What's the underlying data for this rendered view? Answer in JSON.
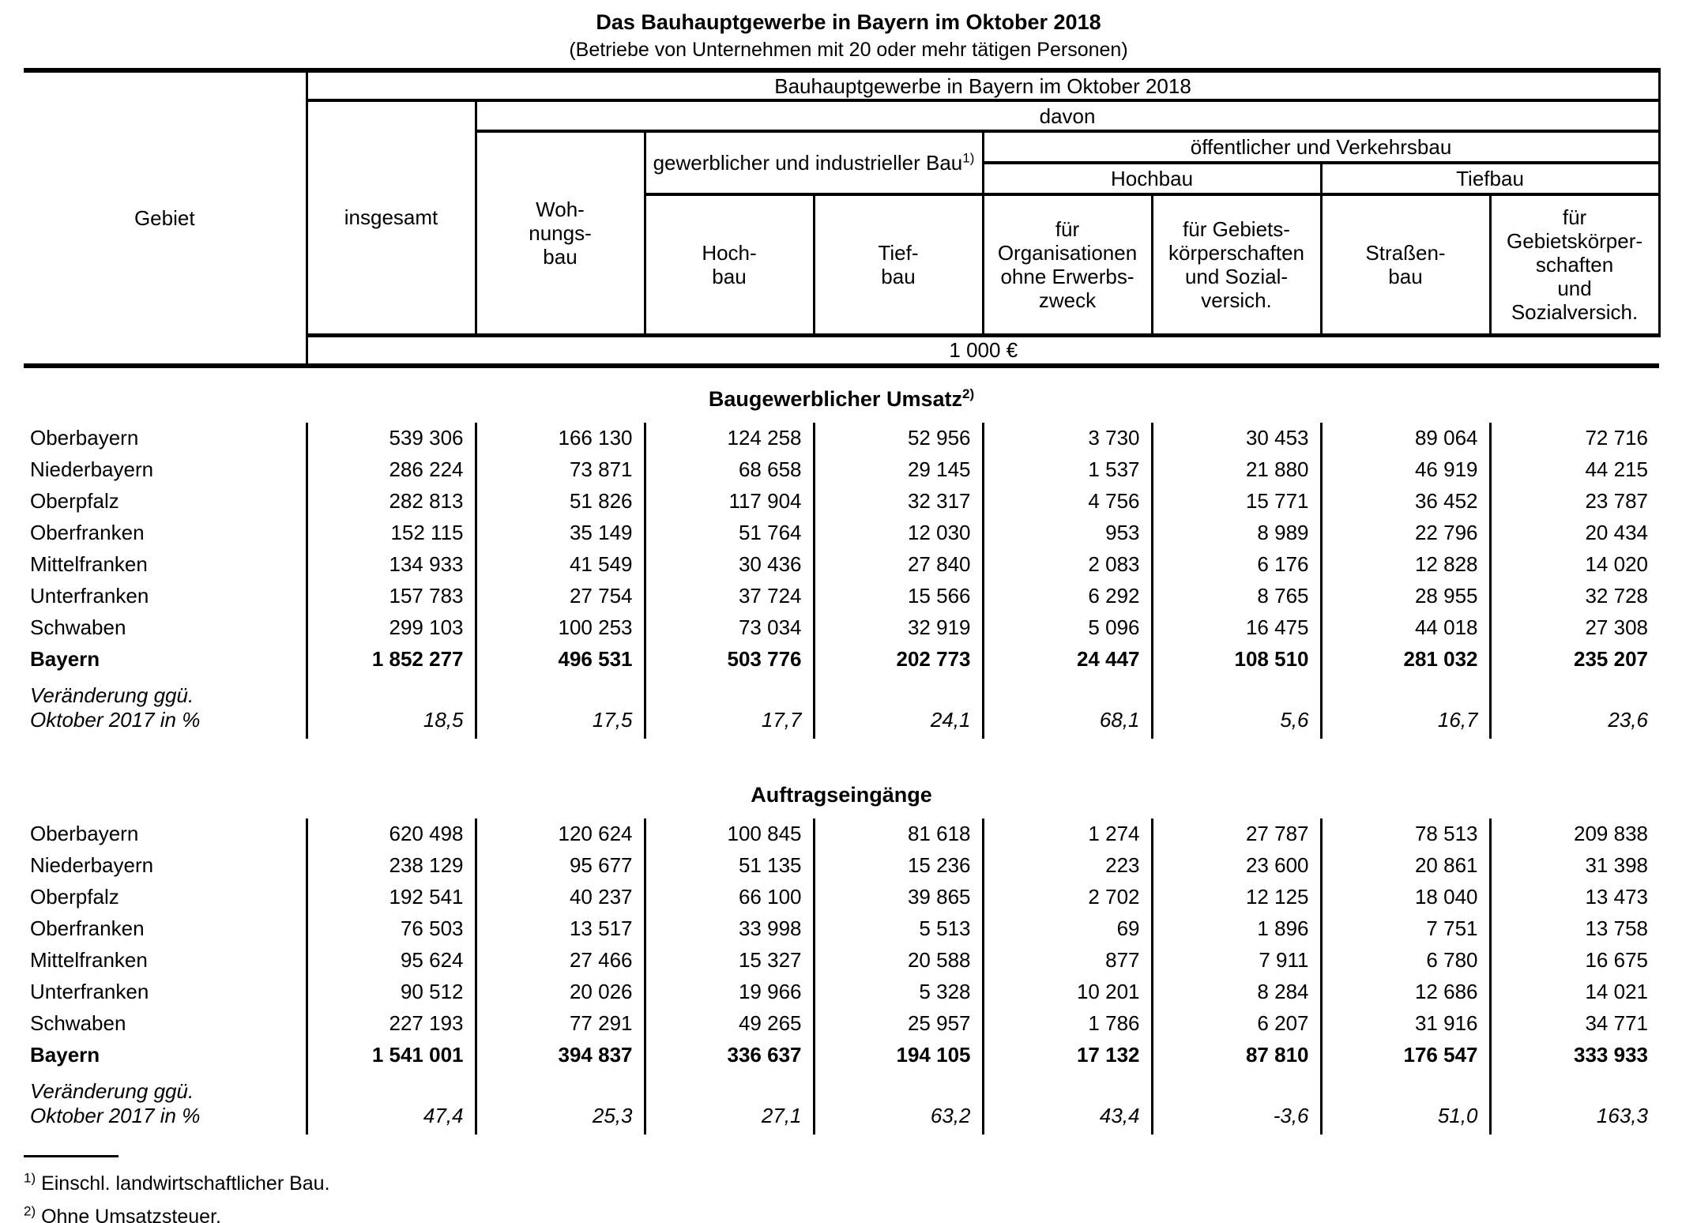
{
  "doc": {
    "title": "Das Bauhauptgewerbe in Bayern im Oktober 2018",
    "subtitle": "(Betriebe von Unternehmen mit 20 oder mehr tätigen Personen)"
  },
  "header": {
    "gebiet": "Gebiet",
    "group_top": "Bauhauptgewerbe in Bayern im Oktober 2018",
    "insgesamt": "insgesamt",
    "davon": "davon",
    "wohnungsbau": "Woh-\nnungs-\nbau",
    "gewerblich": "gewerblicher und industrieller Bau",
    "gewerblich_fn": "1)",
    "oeffentlich": "öffentlicher und Verkehrsbau",
    "hochbau_group": "Hochbau",
    "tiefbau_group": "Tiefbau",
    "hochbau": "Hoch-\nbau",
    "tiefbau": "Tief-\nbau",
    "organisationen": "für\nOrganisationen\nohne Erwerbs-\nzweck",
    "gebietskoerperschaften_hoch": "für Gebiets-\nkörperschaften\nund Sozial-\nversich.",
    "strassenbau": "Straßen-\nbau",
    "gebietskoerperschaften_tief": "für\nGebietskörper-\nschaften\nund\nSozialversich.",
    "unit": "1 000 €"
  },
  "sections": [
    {
      "title": "Baugewerblicher Umsatz",
      "title_fn": "2)",
      "rows": [
        {
          "label": "Oberbayern",
          "style": "normal",
          "values": [
            "539 306",
            "166 130",
            "124 258",
            "52 956",
            "3 730",
            "30 453",
            "89 064",
            "72 716"
          ]
        },
        {
          "label": "Niederbayern",
          "style": "normal",
          "values": [
            "286 224",
            "73 871",
            "68 658",
            "29 145",
            "1 537",
            "21 880",
            "46 919",
            "44 215"
          ]
        },
        {
          "label": "Oberpfalz",
          "style": "normal",
          "values": [
            "282 813",
            "51 826",
            "117 904",
            "32 317",
            "4 756",
            "15 771",
            "36 452",
            "23 787"
          ]
        },
        {
          "label": "Oberfranken",
          "style": "normal",
          "values": [
            "152 115",
            "35 149",
            "51 764",
            "12 030",
            "953",
            "8 989",
            "22 796",
            "20 434"
          ]
        },
        {
          "label": "Mittelfranken",
          "style": "normal",
          "values": [
            "134 933",
            "41 549",
            "30 436",
            "27 840",
            "2 083",
            "6 176",
            "12 828",
            "14 020"
          ]
        },
        {
          "label": "Unterfranken",
          "style": "normal",
          "values": [
            "157 783",
            "27 754",
            "37 724",
            "15 566",
            "6 292",
            "8 765",
            "28 955",
            "32 728"
          ]
        },
        {
          "label": "Schwaben",
          "style": "normal",
          "values": [
            "299 103",
            "100 253",
            "73 034",
            "32 919",
            "5 096",
            "16 475",
            "44 018",
            "27 308"
          ]
        },
        {
          "label": "Bayern",
          "style": "bold",
          "values": [
            "1 852 277",
            "496 531",
            "503 776",
            "202 773",
            "24 447",
            "108 510",
            "281 032",
            "235 207"
          ]
        },
        {
          "label": "Veränderung ggü.\nOktober 2017 in %",
          "style": "pct",
          "values": [
            "18,5",
            "17,5",
            "17,7",
            "24,1",
            "68,1",
            "5,6",
            "16,7",
            "23,6"
          ]
        }
      ]
    },
    {
      "title": "Auftragseingänge",
      "title_fn": "",
      "rows": [
        {
          "label": "Oberbayern",
          "style": "normal",
          "values": [
            "620 498",
            "120 624",
            "100 845",
            "81 618",
            "1 274",
            "27 787",
            "78 513",
            "209 838"
          ]
        },
        {
          "label": "Niederbayern",
          "style": "normal",
          "values": [
            "238 129",
            "95 677",
            "51 135",
            "15 236",
            "223",
            "23 600",
            "20 861",
            "31 398"
          ]
        },
        {
          "label": "Oberpfalz",
          "style": "normal",
          "values": [
            "192 541",
            "40 237",
            "66 100",
            "39 865",
            "2 702",
            "12 125",
            "18 040",
            "13 473"
          ]
        },
        {
          "label": "Oberfranken",
          "style": "normal",
          "values": [
            "76 503",
            "13 517",
            "33 998",
            "5 513",
            "69",
            "1 896",
            "7 751",
            "13 758"
          ]
        },
        {
          "label": "Mittelfranken",
          "style": "normal",
          "values": [
            "95 624",
            "27 466",
            "15 327",
            "20 588",
            "877",
            "7 911",
            "6 780",
            "16 675"
          ]
        },
        {
          "label": "Unterfranken",
          "style": "normal",
          "values": [
            "90 512",
            "20 026",
            "19 966",
            "5 328",
            "10 201",
            "8 284",
            "12 686",
            "14 021"
          ]
        },
        {
          "label": "Schwaben",
          "style": "normal",
          "values": [
            "227 193",
            "77 291",
            "49 265",
            "25 957",
            "1 786",
            "6 207",
            "31 916",
            "34 771"
          ]
        },
        {
          "label": "Bayern",
          "style": "bold",
          "values": [
            "1 541 001",
            "394 837",
            "336 637",
            "194 105",
            "17 132",
            "87 810",
            "176 547",
            "333 933"
          ]
        },
        {
          "label": "Veränderung ggü.\nOktober 2017 in %",
          "style": "pct",
          "values": [
            "47,4",
            "25,3",
            "27,1",
            "63,2",
            "43,4",
            "-3,6",
            "51,0",
            "163,3"
          ]
        }
      ]
    }
  ],
  "footnotes": [
    {
      "marker": "1)",
      "text": "Einschl. landwirtschaftlicher Bau."
    },
    {
      "marker": "2)",
      "text": "Ohne Umsatzsteuer."
    }
  ]
}
